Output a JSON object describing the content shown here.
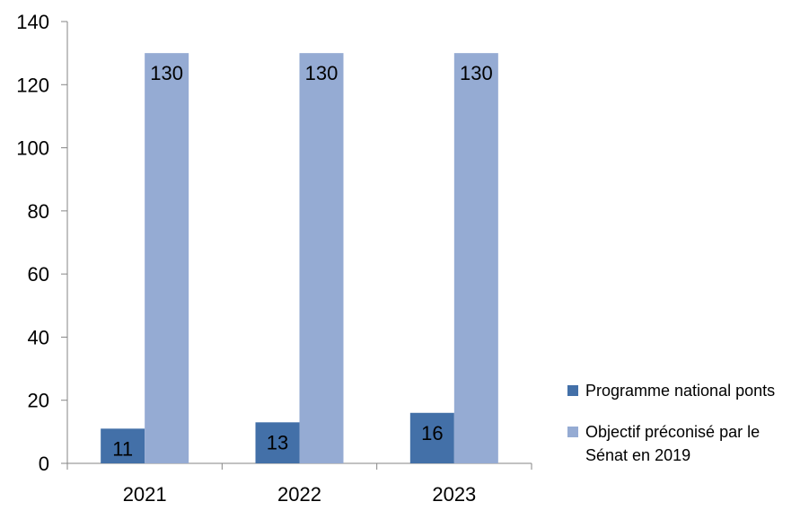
{
  "chart_data": {
    "type": "bar",
    "title": "",
    "xlabel": "",
    "ylabel": "",
    "categories": [
      "2021",
      "2022",
      "2023"
    ],
    "series": [
      {
        "name": "Programme national ponts",
        "values": [
          11,
          13,
          16
        ],
        "color": "#4370a8"
      },
      {
        "name": "Objectif préconisé par le Sénat en 2019",
        "values": [
          130,
          130,
          130
        ],
        "color": "#95abd3"
      }
    ],
    "ylim": [
      0,
      140
    ],
    "yticks": [
      0,
      20,
      40,
      60,
      80,
      100,
      120,
      140
    ],
    "grid": false,
    "data_labels": true,
    "legend_position": "right"
  }
}
